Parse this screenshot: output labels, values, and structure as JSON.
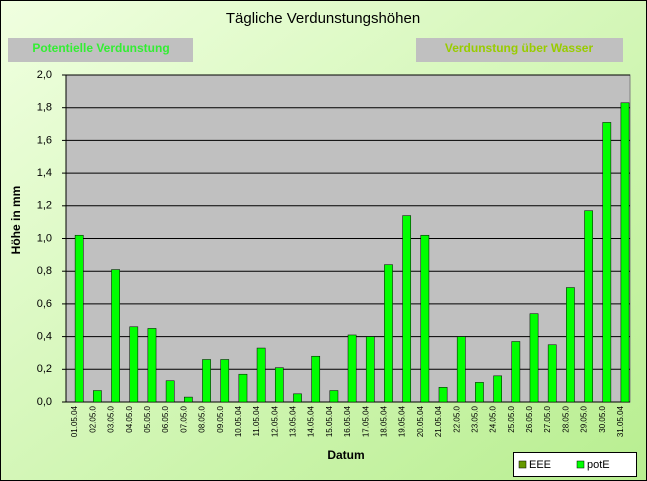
{
  "chart_data": {
    "type": "bar",
    "title": "Tägliche Verdunstungshöhen",
    "buttons": [
      "Potentielle Verdunstung",
      "Verdunstung über Wasser"
    ],
    "x_label": "Datum",
    "y_label": "Höhe in mm",
    "categories": [
      "01.05.04",
      "02.05.0",
      "03.05.0",
      "04.05.0",
      "05.05.0",
      "06.05.0",
      "07.05.0",
      "08.05.0",
      "09.05.0",
      "10.05.04",
      "11.05.04",
      "12.05.04",
      "13.05.04",
      "14.05.04",
      "15.05.04",
      "16.05.04",
      "17.05.04",
      "18.05.04",
      "19.05.04",
      "20.05.04",
      "21.05.04",
      "22.05.0",
      "23.05.0",
      "24.05.0",
      "25.05.0",
      "26.05.0",
      "27.05.0",
      "28.05.0",
      "29.05.0",
      "30.05.0",
      "31.05.04"
    ],
    "series": [
      {
        "name": "EEE",
        "color": "#669900",
        "values": [
          null,
          null,
          null,
          null,
          null,
          null,
          null,
          null,
          null,
          null,
          null,
          null,
          null,
          null,
          null,
          null,
          null,
          null,
          null,
          null,
          null,
          null,
          null,
          null,
          null,
          null,
          null,
          null,
          null,
          null,
          null
        ]
      },
      {
        "name": "potE",
        "color": "#00ff00",
        "values": [
          1.02,
          0.07,
          0.81,
          0.46,
          0.45,
          0.13,
          0.03,
          0.26,
          0.26,
          0.17,
          0.33,
          0.21,
          0.05,
          0.28,
          0.07,
          0.41,
          0.4,
          0.84,
          1.14,
          1.02,
          0.09,
          0.4,
          0.12,
          0.16,
          0.37,
          0.54,
          0.35,
          0.7,
          1.17,
          1.71,
          1.83
        ]
      }
    ],
    "ylim": [
      0,
      2
    ],
    "yticks": [
      {
        "value": 0,
        "label": "0,0"
      },
      {
        "value": 0.2,
        "label": "0,2"
      },
      {
        "value": 0.4,
        "label": "0,4"
      },
      {
        "value": 0.6,
        "label": "0,6"
      },
      {
        "value": 0.8,
        "label": "0,8"
      },
      {
        "value": 1,
        "label": "1,0"
      },
      {
        "value": 1.2,
        "label": "1,2"
      },
      {
        "value": 1.4,
        "label": "1,4"
      },
      {
        "value": 1.6,
        "label": "1,6"
      },
      {
        "value": 1.8,
        "label": "1,8"
      },
      {
        "value": 2,
        "label": "2,0"
      }
    ],
    "grid": true,
    "legend": "bottom-right"
  }
}
